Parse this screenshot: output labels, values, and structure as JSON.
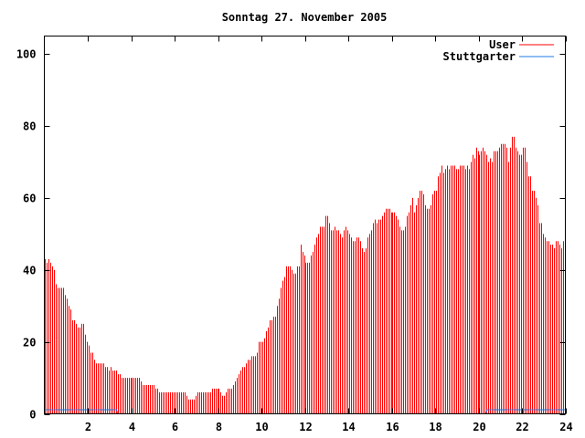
{
  "chart_data": {
    "type": "bar",
    "title": "Sonntag 27. November 2005",
    "xlabel": "",
    "ylabel": "",
    "xlim": [
      0,
      24
    ],
    "ylim": [
      0,
      105
    ],
    "x_ticks": [
      2,
      4,
      6,
      8,
      10,
      12,
      14,
      16,
      18,
      20,
      22,
      24
    ],
    "y_ticks": [
      0,
      20,
      40,
      60,
      80,
      100
    ],
    "grid": false,
    "legend_position": "top-right",
    "interval_minutes": 5,
    "series": [
      {
        "name": "User",
        "color": "#ff0000",
        "style": "impulses",
        "values": [
          43,
          42,
          43,
          42,
          41,
          40,
          36,
          35,
          35,
          35,
          35,
          33,
          32,
          30,
          29,
          26,
          26,
          25,
          24,
          24,
          25,
          25,
          22,
          20,
          19,
          17,
          17,
          15,
          14,
          14,
          14,
          14,
          14,
          13,
          13,
          12,
          13,
          12,
          12,
          12,
          11,
          11,
          10,
          10,
          10,
          10,
          10,
          10,
          10,
          10,
          10,
          10,
          10,
          9,
          8,
          8,
          8,
          8,
          8,
          8,
          8,
          7,
          7,
          6,
          6,
          6,
          6,
          6,
          6,
          6,
          6,
          6,
          6,
          6,
          6,
          6,
          6,
          6,
          5,
          4,
          4,
          4,
          4,
          5,
          6,
          6,
          6,
          6,
          6,
          6,
          6,
          6,
          7,
          7,
          7,
          7,
          7,
          6,
          5,
          5,
          6,
          7,
          7,
          7,
          8,
          9,
          10,
          11,
          12,
          13,
          13,
          14,
          15,
          15,
          16,
          16,
          16,
          17,
          20,
          20,
          20,
          21,
          23,
          24,
          26,
          26,
          27,
          27,
          30,
          32,
          35,
          37,
          38,
          41,
          41,
          41,
          40,
          39,
          39,
          41,
          41,
          47,
          45,
          44,
          42,
          42,
          42,
          44,
          45,
          47,
          49,
          50,
          52,
          52,
          52,
          55,
          55,
          53,
          51,
          51,
          52,
          51,
          51,
          50,
          49,
          51,
          52,
          51,
          50,
          49,
          48,
          48,
          49,
          49,
          48,
          46,
          45,
          46,
          49,
          50,
          51,
          53,
          54,
          53,
          54,
          54,
          55,
          56,
          57,
          57,
          57,
          56,
          56,
          56,
          55,
          54,
          52,
          51,
          51,
          52,
          55,
          56,
          58,
          60,
          56,
          58,
          60,
          62,
          62,
          61,
          58,
          57,
          57,
          58,
          61,
          62,
          62,
          66,
          67,
          69,
          67,
          68,
          69,
          68,
          69,
          69,
          69,
          68,
          68,
          69,
          69,
          69,
          68,
          69,
          68,
          70,
          72,
          71,
          74,
          73,
          72,
          73,
          74,
          73,
          72,
          70,
          71,
          70,
          73,
          73,
          73,
          74,
          75,
          75,
          75,
          74,
          70,
          74,
          77,
          77,
          74,
          73,
          72,
          72,
          74,
          74,
          70,
          66,
          66,
          62,
          62,
          60,
          58,
          53,
          53,
          50,
          49,
          48,
          48,
          47,
          47,
          46,
          48,
          48,
          47,
          46,
          48,
          48
        ]
      },
      {
        "name": "Stuttgarter",
        "color": "#1e78e6",
        "style": "lines",
        "segments": [
          [
            [
              0,
              1
            ],
            [
              3.33,
              1
            ],
            [
              3.38,
              0
            ]
          ],
          [
            [
              20.33,
              0
            ],
            [
              20.4,
              1
            ],
            [
              24,
              1
            ]
          ]
        ]
      }
    ]
  }
}
